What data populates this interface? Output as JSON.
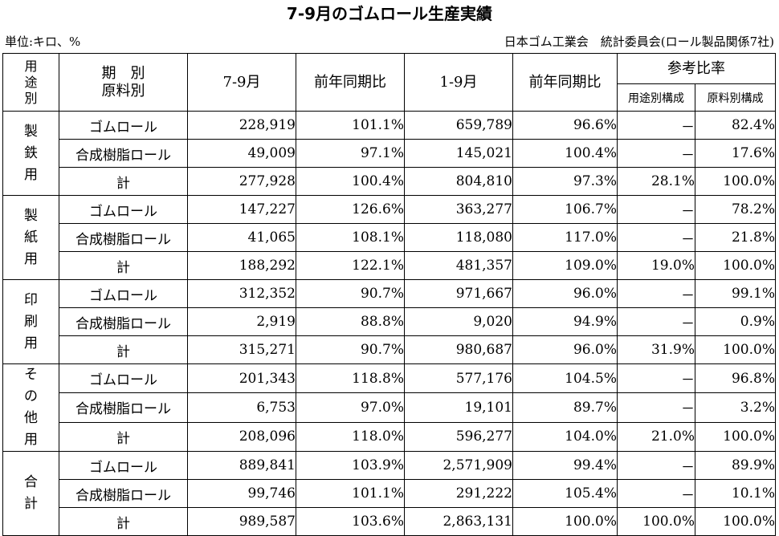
{
  "title": "7-9月のゴムロール生産実績",
  "unit": "単位:キロ、%",
  "source": "日本ゴム工業会　統計委員会(ロール製品関係7社)",
  "headers": {
    "usage": "用途別",
    "period": "期　別",
    "material": "原料別",
    "q": "7-9月",
    "q_yoy": "前年同期比",
    "ytd": "1-9月",
    "ytd_yoy": "前年同期比",
    "ref": "参考比率",
    "ref_usage": "用途別構成",
    "ref_material": "原料別構成"
  },
  "groups": [
    {
      "name": "製鉄用",
      "rows": [
        {
          "label": "ゴムロール",
          "q": "228,919",
          "q_yoy": "101.1%",
          "ytd": "659,789",
          "ytd_yoy": "96.6%",
          "ref_usage": "－",
          "ref_material": "82.4%"
        },
        {
          "label": "合成樹脂ロール",
          "q": "49,009",
          "q_yoy": "97.1%",
          "ytd": "145,021",
          "ytd_yoy": "100.4%",
          "ref_usage": "－",
          "ref_material": "17.6%"
        },
        {
          "label": "計",
          "q": "277,928",
          "q_yoy": "100.4%",
          "ytd": "804,810",
          "ytd_yoy": "97.3%",
          "ref_usage": "28.1%",
          "ref_material": "100.0%"
        }
      ]
    },
    {
      "name": "製紙用",
      "rows": [
        {
          "label": "ゴムロール",
          "q": "147,227",
          "q_yoy": "126.6%",
          "ytd": "363,277",
          "ytd_yoy": "106.7%",
          "ref_usage": "－",
          "ref_material": "78.2%"
        },
        {
          "label": "合成樹脂ロール",
          "q": "41,065",
          "q_yoy": "108.1%",
          "ytd": "118,080",
          "ytd_yoy": "117.0%",
          "ref_usage": "－",
          "ref_material": "21.8%"
        },
        {
          "label": "計",
          "q": "188,292",
          "q_yoy": "122.1%",
          "ytd": "481,357",
          "ytd_yoy": "109.0%",
          "ref_usage": "19.0%",
          "ref_material": "100.0%"
        }
      ]
    },
    {
      "name": "印刷用",
      "rows": [
        {
          "label": "ゴムロール",
          "q": "312,352",
          "q_yoy": "90.7%",
          "ytd": "971,667",
          "ytd_yoy": "96.0%",
          "ref_usage": "－",
          "ref_material": "99.1%"
        },
        {
          "label": "合成樹脂ロール",
          "q": "2,919",
          "q_yoy": "88.8%",
          "ytd": "9,020",
          "ytd_yoy": "94.9%",
          "ref_usage": "－",
          "ref_material": "0.9%"
        },
        {
          "label": "計",
          "q": "315,271",
          "q_yoy": "90.7%",
          "ytd": "980,687",
          "ytd_yoy": "96.0%",
          "ref_usage": "31.9%",
          "ref_material": "100.0%"
        }
      ]
    },
    {
      "name": "その他用",
      "rows": [
        {
          "label": "ゴムロール",
          "q": "201,343",
          "q_yoy": "118.8%",
          "ytd": "577,176",
          "ytd_yoy": "104.5%",
          "ref_usage": "－",
          "ref_material": "96.8%"
        },
        {
          "label": "合成樹脂ロール",
          "q": "6,753",
          "q_yoy": "97.0%",
          "ytd": "19,101",
          "ytd_yoy": "89.7%",
          "ref_usage": "－",
          "ref_material": "3.2%"
        },
        {
          "label": "計",
          "q": "208,096",
          "q_yoy": "118.0%",
          "ytd": "596,277",
          "ytd_yoy": "104.0%",
          "ref_usage": "21.0%",
          "ref_material": "100.0%"
        }
      ]
    },
    {
      "name": "合計",
      "rows": [
        {
          "label": "ゴムロール",
          "q": "889,841",
          "q_yoy": "103.9%",
          "ytd": "2,571,909",
          "ytd_yoy": "99.4%",
          "ref_usage": "－",
          "ref_material": "89.9%"
        },
        {
          "label": "合成樹脂ロール",
          "q": "99,746",
          "q_yoy": "101.1%",
          "ytd": "291,222",
          "ytd_yoy": "105.4%",
          "ref_usage": "－",
          "ref_material": "10.1%"
        },
        {
          "label": "計",
          "q": "989,587",
          "q_yoy": "103.6%",
          "ytd": "2,863,131",
          "ytd_yoy": "100.0%",
          "ref_usage": "100.0%",
          "ref_material": "100.0%"
        }
      ]
    }
  ]
}
